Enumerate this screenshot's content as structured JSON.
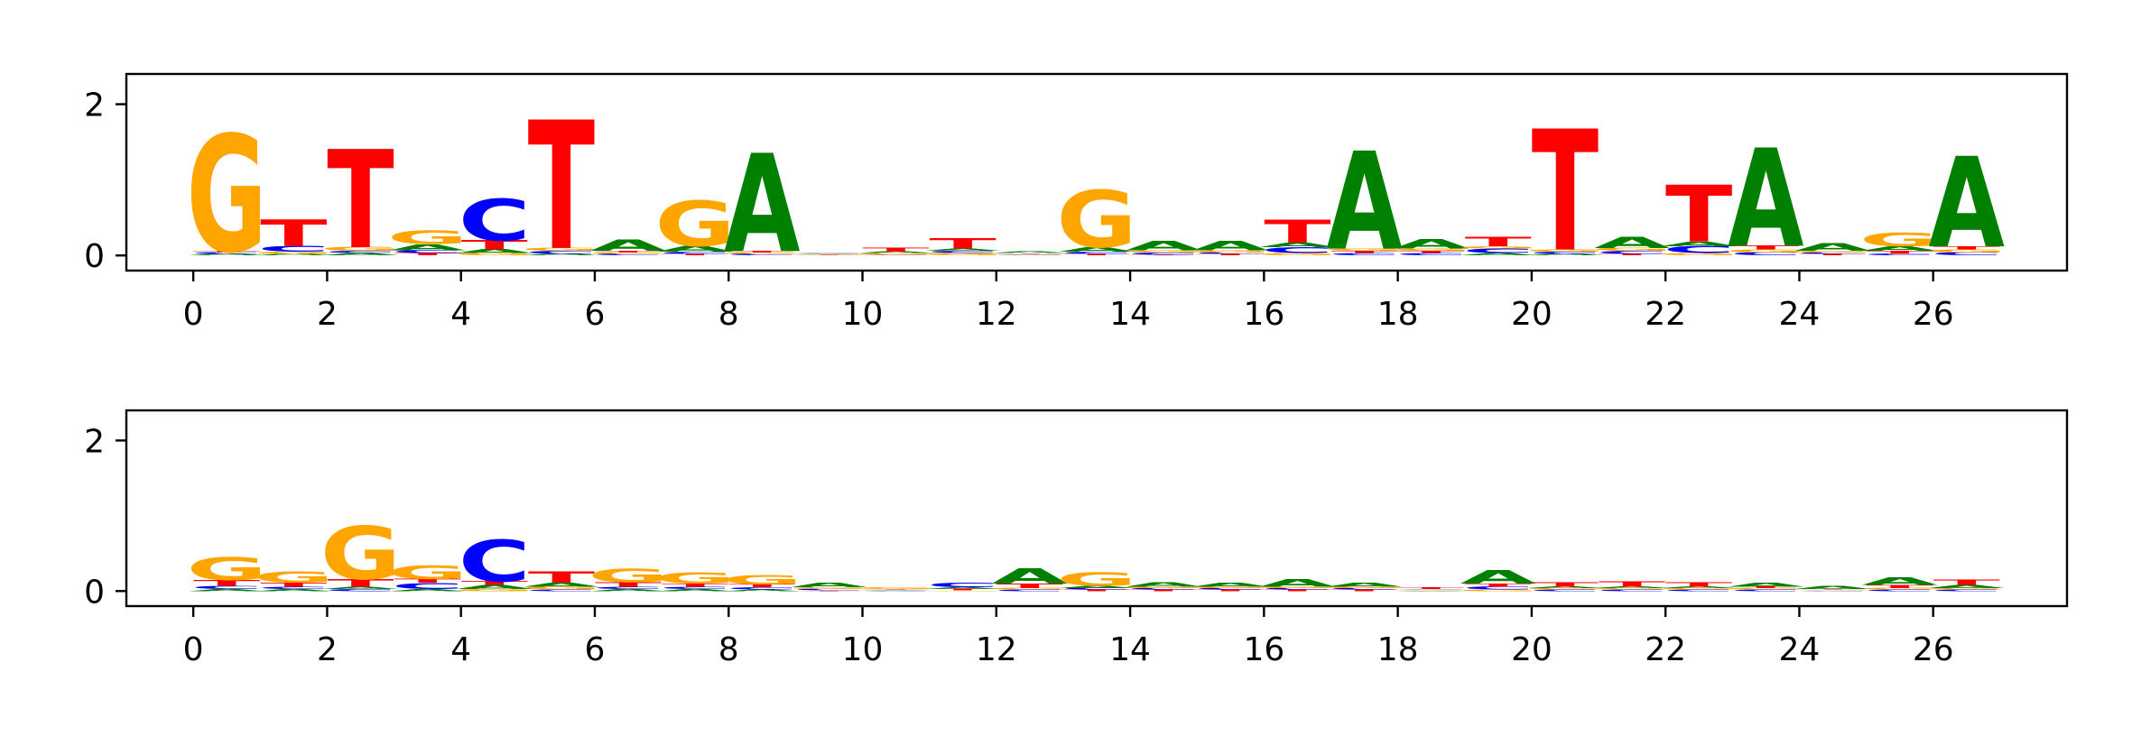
{
  "colors": {
    "A": "#008000",
    "C": "#0000ff",
    "G": "#ffa500",
    "T": "#ff0000",
    "axes": "#000000",
    "background": "#ffffff"
  },
  "chart_data": [
    {
      "type": "sequence-logo",
      "title": "",
      "xlabel": "",
      "ylabel": "",
      "ylim": [
        -0.2,
        2.4
      ],
      "yticks": [
        "0",
        "2"
      ],
      "xlim": [
        -1,
        28
      ],
      "xticks": [
        "0",
        "2",
        "4",
        "6",
        "8",
        "10",
        "12",
        "14",
        "16",
        "18",
        "20",
        "22",
        "24",
        "26"
      ],
      "positions": [
        [
          [
            "A",
            0.02
          ],
          [
            "C",
            0.02
          ],
          [
            "T",
            0.02
          ],
          [
            "G",
            1.55
          ]
        ],
        [
          [
            "A",
            0.02
          ],
          [
            "G",
            0.03
          ],
          [
            "C",
            0.08
          ],
          [
            "T",
            0.35
          ]
        ],
        [
          [
            "A",
            0.03
          ],
          [
            "C",
            0.03
          ],
          [
            "G",
            0.05
          ],
          [
            "T",
            1.3
          ]
        ],
        [
          [
            "T",
            0.03
          ],
          [
            "C",
            0.04
          ],
          [
            "A",
            0.08
          ],
          [
            "G",
            0.18
          ]
        ],
        [
          [
            "G",
            0.03
          ],
          [
            "A",
            0.05
          ],
          [
            "T",
            0.12
          ],
          [
            "C",
            0.55
          ]
        ],
        [
          [
            "A",
            0.02
          ],
          [
            "C",
            0.04
          ],
          [
            "G",
            0.04
          ],
          [
            "T",
            1.7
          ]
        ],
        [
          [
            "C",
            0.02
          ],
          [
            "G",
            0.02
          ],
          [
            "T",
            0.02
          ],
          [
            "A",
            0.15
          ]
        ],
        [
          [
            "T",
            0.02
          ],
          [
            "C",
            0.03
          ],
          [
            "A",
            0.08
          ],
          [
            "G",
            0.6
          ]
        ],
        [
          [
            "C",
            0.02
          ],
          [
            "G",
            0.02
          ],
          [
            "T",
            0.02
          ],
          [
            "A",
            1.3
          ]
        ],
        [
          [
            "G",
            0.01
          ],
          [
            "T",
            0.01
          ],
          [
            "A",
            0.01
          ],
          [
            "C",
            0.01
          ]
        ],
        [
          [
            "C",
            0.01
          ],
          [
            "G",
            0.02
          ],
          [
            "A",
            0.02
          ],
          [
            "T",
            0.05
          ]
        ],
        [
          [
            "G",
            0.03
          ],
          [
            "C",
            0.03
          ],
          [
            "A",
            0.03
          ],
          [
            "T",
            0.14
          ]
        ],
        [
          [
            "C",
            0.01
          ],
          [
            "G",
            0.01
          ],
          [
            "T",
            0.01
          ],
          [
            "A",
            0.02
          ]
        ],
        [
          [
            "T",
            0.02
          ],
          [
            "C",
            0.03
          ],
          [
            "A",
            0.06
          ],
          [
            "G",
            0.75
          ]
        ],
        [
          [
            "T",
            0.01
          ],
          [
            "C",
            0.03
          ],
          [
            "G",
            0.03
          ],
          [
            "A",
            0.12
          ]
        ],
        [
          [
            "T",
            0.02
          ],
          [
            "C",
            0.02
          ],
          [
            "G",
            0.03
          ],
          [
            "A",
            0.12
          ]
        ],
        [
          [
            "G",
            0.03
          ],
          [
            "C",
            0.08
          ],
          [
            "A",
            0.06
          ],
          [
            "T",
            0.3
          ]
        ],
        [
          [
            "C",
            0.03
          ],
          [
            "T",
            0.03
          ],
          [
            "G",
            0.03
          ],
          [
            "A",
            1.3
          ]
        ],
        [
          [
            "C",
            0.03
          ],
          [
            "T",
            0.03
          ],
          [
            "G",
            0.03
          ],
          [
            "A",
            0.12
          ]
        ],
        [
          [
            "A",
            0.03
          ],
          [
            "C",
            0.06
          ],
          [
            "G",
            0.03
          ],
          [
            "T",
            0.12
          ]
        ],
        [
          [
            "A",
            0.02
          ],
          [
            "C",
            0.03
          ],
          [
            "G",
            0.03
          ],
          [
            "T",
            1.6
          ]
        ],
        [
          [
            "T",
            0.02
          ],
          [
            "C",
            0.04
          ],
          [
            "G",
            0.04
          ],
          [
            "A",
            0.15
          ]
        ],
        [
          [
            "G",
            0.03
          ],
          [
            "C",
            0.09
          ],
          [
            "A",
            0.06
          ],
          [
            "T",
            0.75
          ]
        ],
        [
          [
            "C",
            0.04
          ],
          [
            "G",
            0.04
          ],
          [
            "T",
            0.05
          ],
          [
            "A",
            1.3
          ]
        ],
        [
          [
            "T",
            0.02
          ],
          [
            "C",
            0.02
          ],
          [
            "G",
            0.02
          ],
          [
            "A",
            0.1
          ]
        ],
        [
          [
            "C",
            0.02
          ],
          [
            "T",
            0.04
          ],
          [
            "A",
            0.06
          ],
          [
            "G",
            0.18
          ]
        ],
        [
          [
            "C",
            0.04
          ],
          [
            "G",
            0.04
          ],
          [
            "T",
            0.04
          ],
          [
            "A",
            1.2
          ]
        ]
      ]
    },
    {
      "type": "sequence-logo",
      "title": "",
      "xlabel": "",
      "ylabel": "",
      "ylim": [
        -0.2,
        2.4
      ],
      "yticks": [
        "0",
        "2"
      ],
      "xlim": [
        -1,
        28
      ],
      "xticks": [
        "0",
        "2",
        "4",
        "6",
        "8",
        "10",
        "12",
        "14",
        "16",
        "18",
        "20",
        "22",
        "24",
        "26"
      ],
      "positions": [
        [
          [
            "A",
            0.03
          ],
          [
            "C",
            0.04
          ],
          [
            "T",
            0.08
          ],
          [
            "G",
            0.3
          ]
        ],
        [
          [
            "A",
            0.03
          ],
          [
            "C",
            0.03
          ],
          [
            "T",
            0.05
          ],
          [
            "G",
            0.15
          ]
        ],
        [
          [
            "C",
            0.03
          ],
          [
            "A",
            0.03
          ],
          [
            "T",
            0.1
          ],
          [
            "G",
            0.7
          ]
        ],
        [
          [
            "A",
            0.03
          ],
          [
            "C",
            0.08
          ],
          [
            "T",
            0.05
          ],
          [
            "G",
            0.18
          ]
        ],
        [
          [
            "G",
            0.03
          ],
          [
            "A",
            0.05
          ],
          [
            "T",
            0.05
          ],
          [
            "C",
            0.55
          ]
        ],
        [
          [
            "C",
            0.02
          ],
          [
            "G",
            0.04
          ],
          [
            "A",
            0.05
          ],
          [
            "T",
            0.15
          ]
        ],
        [
          [
            "A",
            0.03
          ],
          [
            "C",
            0.03
          ],
          [
            "T",
            0.06
          ],
          [
            "G",
            0.18
          ]
        ],
        [
          [
            "A",
            0.03
          ],
          [
            "C",
            0.03
          ],
          [
            "T",
            0.04
          ],
          [
            "G",
            0.15
          ]
        ],
        [
          [
            "A",
            0.02
          ],
          [
            "C",
            0.03
          ],
          [
            "T",
            0.04
          ],
          [
            "G",
            0.12
          ]
        ],
        [
          [
            "T",
            0.01
          ],
          [
            "C",
            0.02
          ],
          [
            "G",
            0.02
          ],
          [
            "A",
            0.06
          ]
        ],
        [
          [
            "C",
            0.01
          ],
          [
            "A",
            0.01
          ],
          [
            "T",
            0.01
          ],
          [
            "G",
            0.02
          ]
        ],
        [
          [
            "G",
            0.01
          ],
          [
            "T",
            0.02
          ],
          [
            "A",
            0.02
          ],
          [
            "C",
            0.06
          ]
        ],
        [
          [
            "C",
            0.02
          ],
          [
            "G",
            0.02
          ],
          [
            "T",
            0.06
          ],
          [
            "A",
            0.2
          ]
        ],
        [
          [
            "T",
            0.02
          ],
          [
            "C",
            0.02
          ],
          [
            "A",
            0.03
          ],
          [
            "G",
            0.18
          ]
        ],
        [
          [
            "T",
            0.02
          ],
          [
            "C",
            0.02
          ],
          [
            "G",
            0.02
          ],
          [
            "A",
            0.06
          ]
        ],
        [
          [
            "T",
            0.02
          ],
          [
            "C",
            0.02
          ],
          [
            "G",
            0.02
          ],
          [
            "A",
            0.05
          ]
        ],
        [
          [
            "T",
            0.02
          ],
          [
            "C",
            0.02
          ],
          [
            "G",
            0.02
          ],
          [
            "A",
            0.1
          ]
        ],
        [
          [
            "T",
            0.02
          ],
          [
            "C",
            0.02
          ],
          [
            "G",
            0.02
          ],
          [
            "A",
            0.05
          ]
        ],
        [
          [
            "A",
            0.01
          ],
          [
            "G",
            0.01
          ],
          [
            "C",
            0.01
          ],
          [
            "T",
            0.02
          ]
        ],
        [
          [
            "G",
            0.02
          ],
          [
            "C",
            0.04
          ],
          [
            "T",
            0.04
          ],
          [
            "A",
            0.18
          ]
        ],
        [
          [
            "C",
            0.02
          ],
          [
            "G",
            0.02
          ],
          [
            "A",
            0.02
          ],
          [
            "T",
            0.06
          ]
        ],
        [
          [
            "C",
            0.02
          ],
          [
            "G",
            0.02
          ],
          [
            "A",
            0.02
          ],
          [
            "T",
            0.07
          ]
        ],
        [
          [
            "C",
            0.02
          ],
          [
            "G",
            0.02
          ],
          [
            "A",
            0.02
          ],
          [
            "T",
            0.06
          ]
        ],
        [
          [
            "C",
            0.02
          ],
          [
            "G",
            0.02
          ],
          [
            "T",
            0.02
          ],
          [
            "A",
            0.05
          ]
        ],
        [
          [
            "C",
            0.01
          ],
          [
            "G",
            0.01
          ],
          [
            "T",
            0.01
          ],
          [
            "A",
            0.04
          ]
        ],
        [
          [
            "C",
            0.02
          ],
          [
            "G",
            0.02
          ],
          [
            "T",
            0.04
          ],
          [
            "A",
            0.1
          ]
        ],
        [
          [
            "C",
            0.02
          ],
          [
            "G",
            0.02
          ],
          [
            "A",
            0.04
          ],
          [
            "T",
            0.07
          ]
        ]
      ]
    }
  ]
}
